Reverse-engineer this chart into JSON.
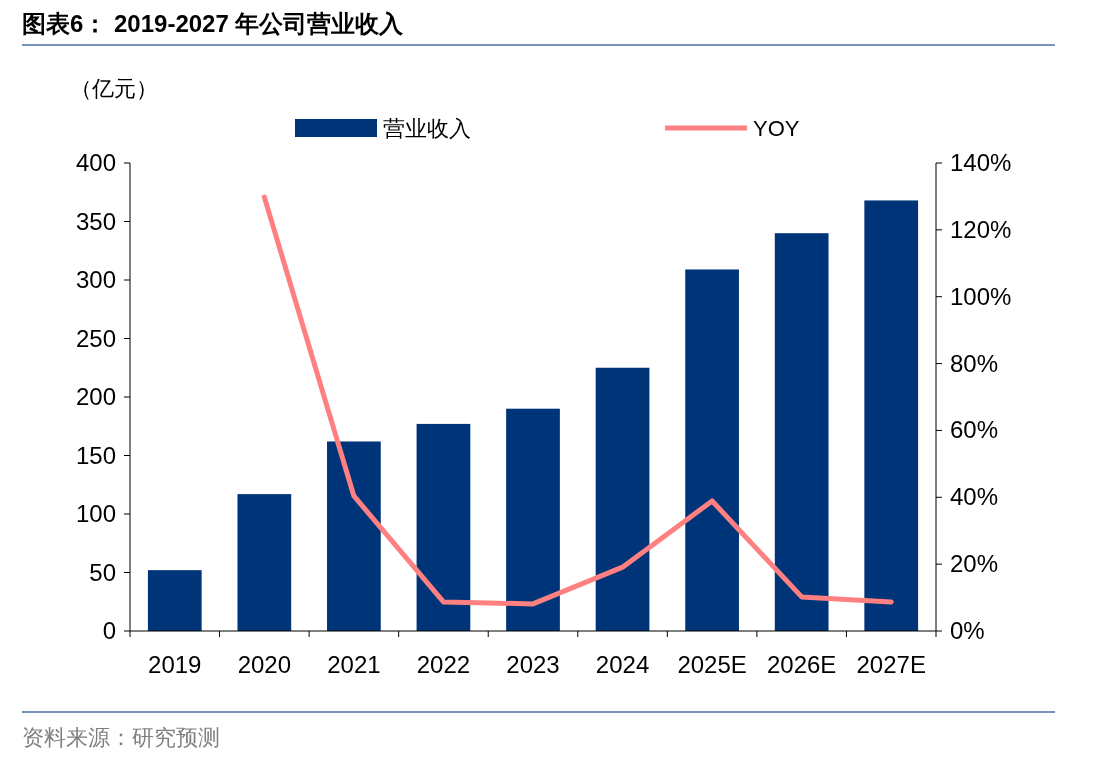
{
  "chart_data": {
    "type": "bar",
    "title": "图表6：  2019-2027 年公司营业收入",
    "ylabel": "（亿元）",
    "categories": [
      "2019",
      "2020",
      "2021",
      "2022",
      "2023",
      "2024",
      "2025E",
      "2026E",
      "2027E"
    ],
    "series": [
      {
        "name": "营业收入",
        "color": "#003478",
        "values": [
          52,
          117,
          162,
          177,
          190,
          225,
          309,
          340,
          368
        ]
      },
      {
        "name": "YOY",
        "type": "line",
        "axis": "y2",
        "color": "#ff8080",
        "values": [
          null,
          129.8,
          40.4,
          8.7,
          8.1,
          19.1,
          38.9,
          10.2,
          8.7
        ]
      }
    ],
    "ylim": [
      0,
      400
    ],
    "yticks": [
      0,
      50,
      100,
      150,
      200,
      250,
      300,
      350,
      400
    ],
    "y2lim": [
      0,
      140
    ],
    "y2ticks": [
      {
        "value": 0,
        "label": "0%"
      },
      {
        "value": 20,
        "label": "20%"
      },
      {
        "value": 40,
        "label": "40%"
      },
      {
        "value": 60,
        "label": "60%"
      },
      {
        "value": 80,
        "label": "80%"
      },
      {
        "value": 100,
        "label": "100%"
      },
      {
        "value": 120,
        "label": "120%"
      },
      {
        "value": 140,
        "label": "140%"
      }
    ],
    "grid": false,
    "legend": "top",
    "annotations": [
      "资料来源：研究预测"
    ]
  }
}
